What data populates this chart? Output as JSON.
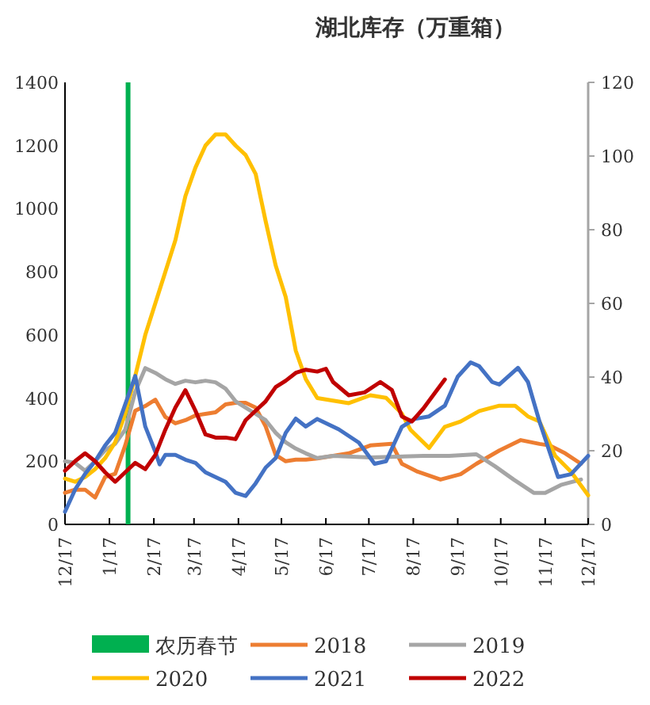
{
  "chart_data": {
    "type": "line",
    "title": "湖北库存（万重箱）",
    "xlim": [
      "2021-12-17",
      "2022-12-17"
    ],
    "xticks": [
      {
        "value": "2021-12-17",
        "label": "12/17"
      },
      {
        "value": "2022-01-17",
        "label": "1/17"
      },
      {
        "value": "2022-02-17",
        "label": "2/17"
      },
      {
        "value": "2022-03-17",
        "label": "3/17"
      },
      {
        "value": "2022-04-17",
        "label": "4/17"
      },
      {
        "value": "2022-05-17",
        "label": "5/17"
      },
      {
        "value": "2022-06-17",
        "label": "6/17"
      },
      {
        "value": "2022-07-17",
        "label": "7/17"
      },
      {
        "value": "2022-08-17",
        "label": "8/17"
      },
      {
        "value": "2022-09-17",
        "label": "9/17"
      },
      {
        "value": "2022-10-17",
        "label": "10/17"
      },
      {
        "value": "2022-11-17",
        "label": "11/17"
      },
      {
        "value": "2022-12-17",
        "label": "12/17"
      }
    ],
    "ylim": [
      0,
      1400
    ],
    "yticks": [
      0,
      200,
      400,
      600,
      800,
      1000,
      1200,
      1400
    ],
    "y2lim": [
      0,
      120
    ],
    "y2ticks": [
      0,
      20,
      40,
      60,
      80,
      100,
      120
    ],
    "legend": "bottom",
    "grid": false,
    "marker": "none",
    "line_style": "solid",
    "ref_lines": [
      {
        "axis": "x",
        "value": "2022-01-30",
        "label": "农历春节",
        "color": "#00b050"
      }
    ],
    "series": [
      {
        "name": "2018",
        "color": "#ed7d31",
        "x": [
          "2021-12-17",
          "2021-12-24",
          "2021-12-31",
          "2022-01-07",
          "2022-01-14",
          "2022-01-21",
          "2022-01-28",
          "2022-02-04",
          "2022-02-11",
          "2022-02-18",
          "2022-02-25",
          "2022-03-04",
          "2022-03-11",
          "2022-03-18",
          "2022-03-25",
          "2022-04-01",
          "2022-04-08",
          "2022-04-15",
          "2022-04-22",
          "2022-04-29",
          "2022-05-06",
          "2022-05-13",
          "2022-05-20",
          "2022-05-27",
          "2022-06-03",
          "2022-06-11",
          "2022-07-03",
          "2022-07-18",
          "2022-08-02",
          "2022-08-09",
          "2022-08-20",
          "2022-09-05",
          "2022-09-19",
          "2022-09-30",
          "2022-10-16",
          "2022-10-31",
          "2022-11-13",
          "2022-11-20",
          "2022-12-01",
          "2022-12-12"
        ],
        "values": [
          100,
          110,
          110,
          85,
          150,
          160,
          250,
          360,
          375,
          395,
          340,
          320,
          330,
          345,
          350,
          355,
          380,
          385,
          385,
          370,
          310,
          220,
          200,
          205,
          205,
          209,
          225,
          250,
          255,
          192,
          167,
          142,
          159,
          192,
          234,
          267,
          255,
          250,
          225,
          192
        ]
      },
      {
        "name": "2019",
        "color": "#a5a5a5",
        "x": [
          "2021-12-17",
          "2021-12-24",
          "2021-12-31",
          "2022-01-07",
          "2022-01-14",
          "2022-01-21",
          "2022-01-28",
          "2022-02-04",
          "2022-02-11",
          "2022-02-18",
          "2022-02-25",
          "2022-03-04",
          "2022-03-11",
          "2022-03-18",
          "2022-03-25",
          "2022-04-01",
          "2022-04-08",
          "2022-04-15",
          "2022-04-22",
          "2022-04-29",
          "2022-05-06",
          "2022-05-13",
          "2022-05-20",
          "2022-05-27",
          "2022-06-03",
          "2022-06-11",
          "2022-06-22",
          "2022-07-18",
          "2022-08-24",
          "2022-09-11",
          "2022-09-30",
          "2022-10-13",
          "2022-10-26",
          "2022-11-09",
          "2022-11-17",
          "2022-11-28",
          "2022-12-12"
        ],
        "values": [
          200,
          195,
          170,
          200,
          235,
          255,
          300,
          420,
          495,
          480,
          460,
          445,
          455,
          450,
          455,
          450,
          430,
          390,
          370,
          350,
          330,
          290,
          260,
          240,
          225,
          210,
          217,
          212,
          217,
          217,
          222,
          184,
          142,
          100,
          100,
          125,
          142
        ]
      },
      {
        "name": "2020",
        "color": "#ffc000",
        "x": [
          "2021-12-17",
          "2021-12-24",
          "2021-12-31",
          "2022-01-07",
          "2022-01-14",
          "2022-01-21",
          "2022-01-28",
          "2022-02-04",
          "2022-02-11",
          "2022-02-18",
          "2022-02-25",
          "2022-03-04",
          "2022-03-11",
          "2022-03-18",
          "2022-03-25",
          "2022-04-01",
          "2022-04-08",
          "2022-04-15",
          "2022-04-22",
          "2022-04-29",
          "2022-05-06",
          "2022-05-13",
          "2022-05-20",
          "2022-05-27",
          "2022-06-03",
          "2022-06-11",
          "2022-06-22",
          "2022-07-03",
          "2022-07-18",
          "2022-07-29",
          "2022-08-09",
          "2022-08-15",
          "2022-08-28",
          "2022-09-08",
          "2022-09-19",
          "2022-10-02",
          "2022-10-16",
          "2022-10-27",
          "2022-11-05",
          "2022-11-13",
          "2022-11-24",
          "2022-12-05",
          "2022-12-17"
        ],
        "values": [
          145,
          135,
          150,
          175,
          210,
          260,
          350,
          470,
          600,
          700,
          800,
          900,
          1040,
          1130,
          1200,
          1235,
          1235,
          1200,
          1170,
          1110,
          960,
          820,
          720,
          550,
          460,
          400,
          392,
          384,
          409,
          401,
          351,
          300,
          242,
          309,
          326,
          359,
          376,
          376,
          342,
          326,
          217,
          167,
          92
        ]
      },
      {
        "name": "2021",
        "color": "#4472c4",
        "x": [
          "2021-12-17",
          "2021-12-24",
          "2021-12-31",
          "2022-01-07",
          "2022-01-14",
          "2022-01-21",
          "2022-01-28",
          "2022-02-04",
          "2022-02-11",
          "2022-02-18",
          "2022-02-21",
          "2022-02-25",
          "2022-03-04",
          "2022-03-11",
          "2022-03-18",
          "2022-03-25",
          "2022-04-01",
          "2022-04-08",
          "2022-04-15",
          "2022-04-22",
          "2022-04-29",
          "2022-05-06",
          "2022-05-13",
          "2022-05-20",
          "2022-05-27",
          "2022-06-03",
          "2022-06-11",
          "2022-06-26",
          "2022-07-10",
          "2022-07-21",
          "2022-07-29",
          "2022-08-09",
          "2022-08-18",
          "2022-08-28",
          "2022-09-08",
          "2022-09-17",
          "2022-09-26",
          "2022-10-02",
          "2022-10-11",
          "2022-10-16",
          "2022-10-29",
          "2022-11-05",
          "2022-11-13",
          "2022-11-26",
          "2022-12-05",
          "2022-12-17"
        ],
        "values": [
          40,
          110,
          160,
          200,
          250,
          290,
          380,
          470,
          310,
          230,
          190,
          220,
          220,
          205,
          195,
          165,
          150,
          135,
          100,
          90,
          130,
          180,
          210,
          290,
          335,
          310,
          334,
          301,
          259,
          192,
          200,
          309,
          334,
          342,
          376,
          468,
          513,
          501,
          451,
          443,
          496,
          451,
          326,
          150,
          159,
          217
        ]
      },
      {
        "name": "2022",
        "color": "#c00000",
        "x": [
          "2021-12-17",
          "2021-12-24",
          "2021-12-31",
          "2022-01-07",
          "2022-01-14",
          "2022-01-21",
          "2022-01-28",
          "2022-02-04",
          "2022-02-11",
          "2022-02-18",
          "2022-02-25",
          "2022-03-04",
          "2022-03-11",
          "2022-03-18",
          "2022-03-25",
          "2022-04-01",
          "2022-04-08",
          "2022-04-15",
          "2022-04-22",
          "2022-04-29",
          "2022-05-06",
          "2022-05-13",
          "2022-05-20",
          "2022-05-27",
          "2022-06-03",
          "2022-06-11",
          "2022-06-17",
          "2022-06-22",
          "2022-07-03",
          "2022-07-14",
          "2022-07-25",
          "2022-08-02",
          "2022-08-09",
          "2022-08-16",
          "2022-08-24",
          "2022-09-08"
        ],
        "values": [
          170,
          200,
          225,
          200,
          165,
          135,
          165,
          195,
          175,
          220,
          300,
          370,
          425,
          360,
          285,
          275,
          275,
          270,
          330,
          360,
          390,
          435,
          455,
          480,
          490,
          484,
          493,
          451,
          409,
          418,
          451,
          426,
          342,
          326,
          367,
          459
        ]
      }
    ]
  }
}
